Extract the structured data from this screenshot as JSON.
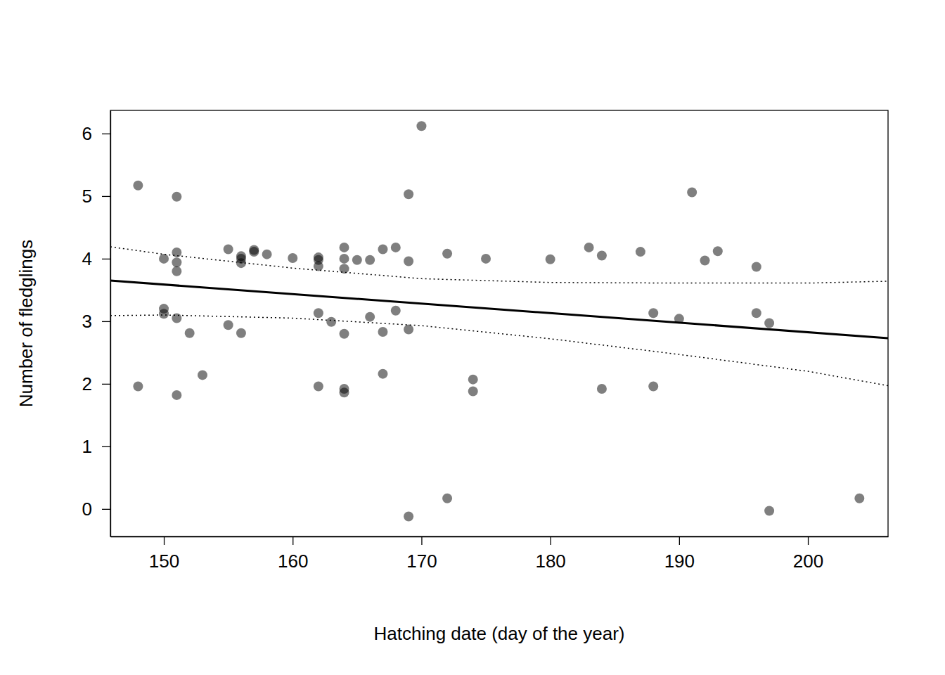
{
  "chart_data": {
    "type": "scatter",
    "x_label": "Hatching date (day of the year)",
    "y_label": "Number of fledglings",
    "xlim": [
      145.85,
      206.22
    ],
    "ylim": [
      -0.44,
      6.37
    ],
    "xticks": [
      150,
      160,
      170,
      180,
      190,
      200
    ],
    "yticks": [
      0,
      1,
      2,
      3,
      4,
      5,
      6
    ],
    "grid": false,
    "series": [
      {
        "type": "scatter",
        "marker": "circle",
        "color": "#000000",
        "x": [
          148,
          148,
          150,
          150,
          150,
          151,
          151,
          151,
          151,
          151,
          151,
          152,
          153,
          155,
          155,
          156,
          156,
          156,
          156,
          157,
          157,
          158,
          160,
          162,
          162,
          162,
          162,
          162,
          163,
          164,
          164,
          164,
          164,
          164,
          164,
          165,
          166,
          166,
          167,
          167,
          167,
          168,
          168,
          169,
          169,
          169,
          169,
          170,
          172,
          172,
          174,
          174,
          175,
          180,
          183,
          184,
          184,
          187,
          188,
          188,
          190,
          191,
          192,
          193,
          196,
          196,
          197,
          197,
          204
        ],
        "values": [
          5.17,
          1.96,
          4.0,
          3.2,
          3.12,
          4.99,
          4.1,
          3.94,
          3.8,
          3.05,
          1.82,
          2.81,
          2.14,
          4.15,
          2.94,
          4.04,
          4.0,
          3.93,
          2.81,
          4.14,
          4.11,
          4.07,
          4.01,
          4.02,
          3.98,
          3.88,
          3.13,
          1.96,
          2.99,
          4.18,
          4.0,
          3.84,
          2.8,
          1.92,
          1.86,
          3.98,
          3.98,
          3.07,
          4.15,
          2.83,
          2.16,
          4.18,
          3.17,
          5.03,
          3.96,
          2.87,
          -0.12,
          6.12,
          4.08,
          0.17,
          2.07,
          1.88,
          4.0,
          3.99,
          4.18,
          4.05,
          1.92,
          4.11,
          3.13,
          1.96,
          3.04,
          5.06,
          3.97,
          4.12,
          3.87,
          3.13,
          2.97,
          -0.03,
          0.17
        ]
      },
      {
        "type": "line",
        "line_style": "solid",
        "color": "#000000",
        "x": [
          145.85,
          206.22
        ],
        "values": [
          3.65,
          2.73
        ]
      },
      {
        "type": "line",
        "line_style": "dotted",
        "color": "#000000",
        "x": [
          145.85,
          150,
          160,
          170,
          180,
          190,
          200,
          206.22
        ],
        "values": [
          4.19,
          4.07,
          3.85,
          3.68,
          3.62,
          3.61,
          3.61,
          3.64
        ]
      },
      {
        "type": "line",
        "line_style": "dotted",
        "color": "#000000",
        "x": [
          145.85,
          150,
          160,
          170,
          180,
          190,
          200,
          206.22
        ],
        "values": [
          3.09,
          3.1,
          3.05,
          2.93,
          2.72,
          2.47,
          2.2,
          1.97
        ]
      }
    ]
  }
}
